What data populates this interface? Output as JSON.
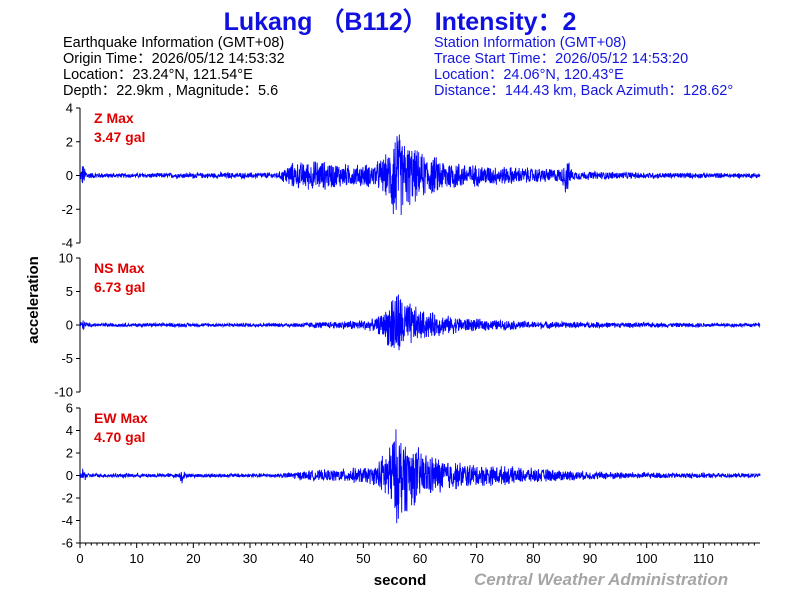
{
  "title": "Lukang （B112） Intensity：2",
  "earthquake": {
    "heading": "Earthquake Information  (GMT+08)",
    "origin_time": "Origin Time：2026/05/12 14:53:32",
    "location": "Location：23.24°N, 121.54°E",
    "depth_magnitude": "Depth：22.9km , Magnitude：5.6"
  },
  "station": {
    "heading": "Station Information  (GMT+08)",
    "trace_start": "Trace Start Time：2026/05/12 14:53:20",
    "location": "Location：24.06°N, 120.43°E",
    "distance": "Distance：144.43 km, Back Azimuth：128.62°"
  },
  "credit": "Central Weather Administration",
  "colors": {
    "title": "#1010e0",
    "trace": "#0000ff",
    "max_label": "#e00000",
    "credit": "#a6a6a6"
  },
  "chart_data": {
    "type": "line",
    "xlabel": "second",
    "ylabel": "acceleration",
    "xlim": [
      0,
      120
    ],
    "x_ticks": [
      0,
      10,
      20,
      30,
      40,
      50,
      60,
      70,
      80,
      90,
      100,
      110
    ],
    "grid": false,
    "panels": [
      {
        "component": "Z",
        "label": "Z Max",
        "max_value": "3.47 gal",
        "ylim": [
          -4,
          4
        ],
        "y_ticks": [
          -4,
          -2,
          0,
          2,
          4
        ],
        "envelope": [
          [
            0,
            0.1
          ],
          [
            0.4,
            0.8
          ],
          [
            1.5,
            0.2
          ],
          [
            5,
            0.15
          ],
          [
            35,
            0.2
          ],
          [
            37,
            0.8
          ],
          [
            42,
            1.0
          ],
          [
            48,
            0.7
          ],
          [
            52,
            0.8
          ],
          [
            54.5,
            1.5
          ],
          [
            55.5,
            3.47
          ],
          [
            57,
            2.4
          ],
          [
            60,
            1.5
          ],
          [
            65,
            1.0
          ],
          [
            70,
            0.7
          ],
          [
            80,
            0.5
          ],
          [
            85,
            0.45
          ],
          [
            85.7,
            1.3
          ],
          [
            87,
            0.3
          ],
          [
            100,
            0.2
          ],
          [
            120,
            0.15
          ]
        ]
      },
      {
        "component": "NS",
        "label": "NS Max",
        "max_value": "6.73 gal",
        "ylim": [
          -10,
          10
        ],
        "y_ticks": [
          -10,
          -5,
          0,
          5,
          10
        ],
        "envelope": [
          [
            0,
            0.2
          ],
          [
            0.4,
            1.0
          ],
          [
            1.5,
            0.3
          ],
          [
            35,
            0.3
          ],
          [
            45,
            0.6
          ],
          [
            52,
            1.0
          ],
          [
            54,
            2.5
          ],
          [
            55.5,
            6.73
          ],
          [
            57,
            4.5
          ],
          [
            60,
            2.5
          ],
          [
            65,
            1.5
          ],
          [
            70,
            1.0
          ],
          [
            80,
            0.6
          ],
          [
            100,
            0.4
          ],
          [
            120,
            0.3
          ]
        ]
      },
      {
        "component": "EW",
        "label": "EW Max",
        "max_value": "4.70 gal",
        "ylim": [
          -6,
          6
        ],
        "y_ticks": [
          -6,
          -4,
          -2,
          0,
          2,
          4,
          6
        ],
        "envelope": [
          [
            0,
            0.1
          ],
          [
            0.4,
            0.7
          ],
          [
            1.5,
            0.2
          ],
          [
            17.5,
            0.2
          ],
          [
            18,
            0.9
          ],
          [
            18.6,
            0.2
          ],
          [
            35,
            0.2
          ],
          [
            40,
            0.5
          ],
          [
            45,
            0.6
          ],
          [
            52,
            0.9
          ],
          [
            54,
            2.5
          ],
          [
            56,
            4.7
          ],
          [
            58,
            3.3
          ],
          [
            62,
            2.0
          ],
          [
            66,
            1.4
          ],
          [
            70,
            1.1
          ],
          [
            80,
            0.7
          ],
          [
            90,
            0.4
          ],
          [
            100,
            0.3
          ],
          [
            120,
            0.2
          ]
        ]
      }
    ]
  }
}
